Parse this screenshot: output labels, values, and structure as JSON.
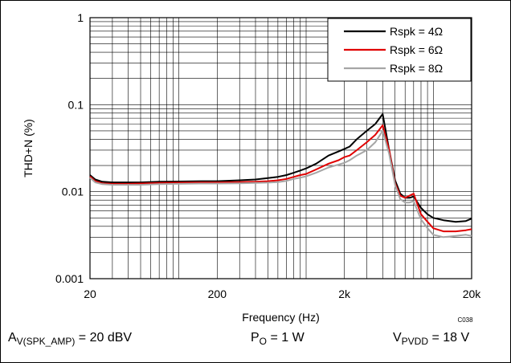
{
  "chart_data": {
    "type": "line",
    "xlabel": "Frequency (Hz)",
    "ylabel": "THD+N (%)",
    "x_scale": "log",
    "y_scale": "log",
    "xlim": [
      20,
      20000
    ],
    "ylim": [
      0.001,
      1
    ],
    "xticks": [
      20,
      200,
      2000,
      20000
    ],
    "xtick_labels": [
      "20",
      "200",
      "2k",
      "20k"
    ],
    "yticks": [
      0.001,
      0.01,
      0.1,
      1
    ],
    "ytick_labels": [
      "0.001",
      "0.01",
      "0.1",
      "1"
    ],
    "grid": true,
    "legend_position": "top-right",
    "code_label": "C038",
    "series": [
      {
        "name": "Rspk = 4Ω",
        "color": "#000000",
        "x": [
          20,
          22,
          25,
          30,
          40,
          50,
          70,
          100,
          150,
          200,
          300,
          400,
          500,
          600,
          700,
          800,
          900,
          1000,
          1200,
          1500,
          1800,
          2000,
          2200,
          2500,
          3000,
          3500,
          4000,
          4500,
          5000,
          5500,
          6000,
          6500,
          7000,
          8000,
          9000,
          10000,
          12000,
          15000,
          18000,
          20000
        ],
        "values": [
          0.0155,
          0.0138,
          0.013,
          0.0128,
          0.0128,
          0.0128,
          0.013,
          0.0131,
          0.0132,
          0.0132,
          0.0135,
          0.0138,
          0.0143,
          0.0148,
          0.0155,
          0.0165,
          0.0175,
          0.0185,
          0.021,
          0.026,
          0.029,
          0.031,
          0.033,
          0.04,
          0.05,
          0.06,
          0.078,
          0.03,
          0.0135,
          0.0095,
          0.0085,
          0.0085,
          0.0088,
          0.0065,
          0.0055,
          0.005,
          0.0047,
          0.0045,
          0.0046,
          0.0049
        ]
      },
      {
        "name": "Rspk = 6Ω",
        "color": "#e00000",
        "x": [
          20,
          22,
          25,
          30,
          40,
          50,
          70,
          100,
          150,
          200,
          300,
          400,
          500,
          600,
          700,
          800,
          900,
          1000,
          1200,
          1500,
          1800,
          2000,
          2200,
          2500,
          3000,
          3500,
          4000,
          4500,
          5000,
          5500,
          6000,
          6500,
          7000,
          8000,
          9000,
          10000,
          12000,
          15000,
          18000,
          20000
        ],
        "values": [
          0.015,
          0.0132,
          0.0125,
          0.0123,
          0.0123,
          0.0124,
          0.0126,
          0.0127,
          0.0128,
          0.0128,
          0.0129,
          0.013,
          0.0132,
          0.0135,
          0.014,
          0.0148,
          0.0155,
          0.016,
          0.018,
          0.021,
          0.023,
          0.025,
          0.026,
          0.03,
          0.037,
          0.045,
          0.058,
          0.03,
          0.0125,
          0.009,
          0.0085,
          0.009,
          0.0095,
          0.0055,
          0.0045,
          0.0038,
          0.0035,
          0.0035,
          0.0036,
          0.0037
        ]
      },
      {
        "name": "Rspk = 8Ω",
        "color": "#a6a6a6",
        "x": [
          20,
          22,
          25,
          30,
          40,
          50,
          70,
          100,
          150,
          200,
          300,
          400,
          500,
          600,
          700,
          800,
          900,
          1000,
          1200,
          1500,
          1800,
          2000,
          2200,
          2500,
          3000,
          3500,
          4000,
          4500,
          5000,
          5500,
          6000,
          6500,
          7000,
          8000,
          9000,
          10000,
          12000,
          15000,
          18000,
          20000
        ],
        "values": [
          0.0145,
          0.0128,
          0.0122,
          0.012,
          0.012,
          0.012,
          0.0122,
          0.0123,
          0.0124,
          0.0124,
          0.0125,
          0.0126,
          0.0127,
          0.0129,
          0.0133,
          0.014,
          0.0145,
          0.015,
          0.0165,
          0.019,
          0.0205,
          0.0215,
          0.023,
          0.026,
          0.03,
          0.037,
          0.05,
          0.027,
          0.012,
          0.0082,
          0.0075,
          0.0075,
          0.0078,
          0.0048,
          0.0038,
          0.0032,
          0.003,
          0.0031,
          0.0032,
          0.0031
        ]
      }
    ]
  },
  "conditions": {
    "gain_main": "A",
    "gain_sub": "V(SPK_AMP)",
    "gain_value": " = 20 dBV",
    "power_main": "P",
    "power_sub": "O",
    "power_value": " = 1 W",
    "supply_main": "V",
    "supply_sub": "PVDD",
    "supply_value": " = 18 V"
  }
}
